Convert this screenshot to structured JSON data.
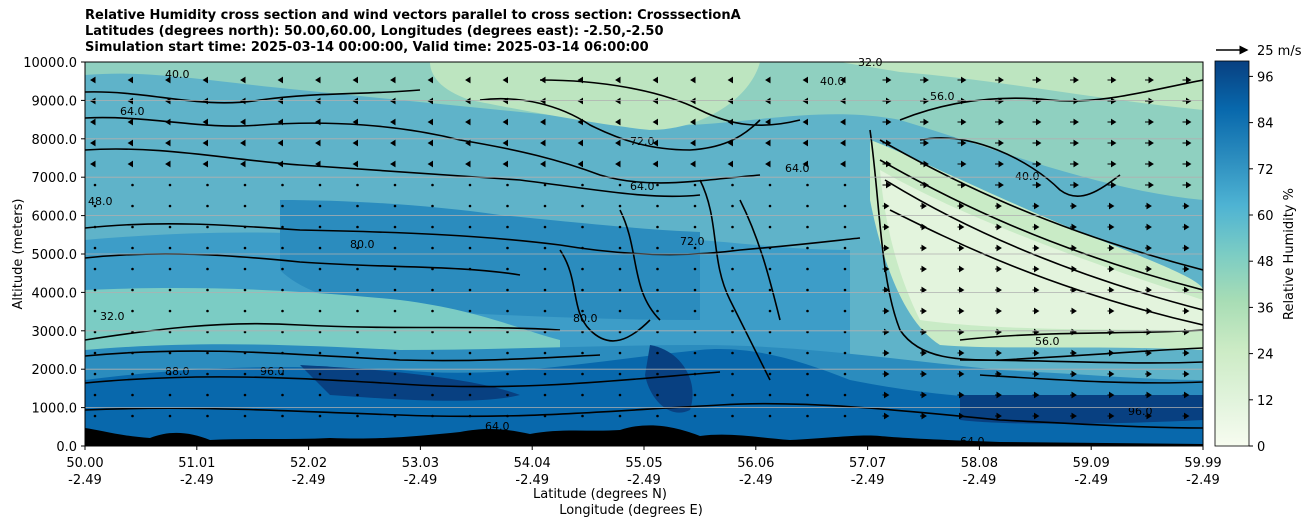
{
  "chart_data": {
    "type": "contour",
    "title_lines": [
      "Relative Humidity cross section and wind vectors parallel to cross section: CrosssectionA",
      "Latitudes (degrees north): 50.00,60.00, Longitudes (degrees east): -2.50,-2.50",
      "Simulation start time: 2025-03-14 00:00:00, Valid time: 2025-03-14 06:00:00"
    ],
    "ylabel": "Altitude (meters)",
    "xlabel_lines": [
      "Latitude (degrees N)",
      "Longitude (degrees E)"
    ],
    "x_ticks_lat": [
      "50.00",
      "51.01",
      "52.02",
      "53.03",
      "54.04",
      "55.05",
      "56.06",
      "57.07",
      "58.08",
      "59.09",
      "59.99"
    ],
    "x_ticks_lon": [
      "-2.49",
      "-2.49",
      "-2.49",
      "-2.49",
      "-2.49",
      "-2.49",
      "-2.49",
      "-2.49",
      "-2.49",
      "-2.49",
      "-2.49"
    ],
    "y_ticks": [
      "0.0",
      "1000.0",
      "2000.0",
      "3000.0",
      "4000.0",
      "5000.0",
      "6000.0",
      "7000.0",
      "8000.0",
      "9000.0",
      "10000.0"
    ],
    "ylim": [
      0,
      10000
    ],
    "grid": "horizontal",
    "colorbar": {
      "label": "Relative Humidity %",
      "ticks": [
        "0",
        "12",
        "24",
        "36",
        "48",
        "60",
        "72",
        "84",
        "96"
      ],
      "range": [
        0,
        100
      ],
      "colormap": "GnBu",
      "colors": [
        "#f7fcf0",
        "#e0f3db",
        "#ccebc5",
        "#a8ddb5",
        "#7bccc4",
        "#4eb3d3",
        "#2b8cbe",
        "#0868ac",
        "#084081"
      ]
    },
    "wind_key": {
      "label": "25 m/s"
    },
    "contour_labels": [
      "32.0",
      "40.0",
      "48.0",
      "56.0",
      "64.0",
      "72.0",
      "80.0",
      "88.0",
      "96.0"
    ]
  }
}
